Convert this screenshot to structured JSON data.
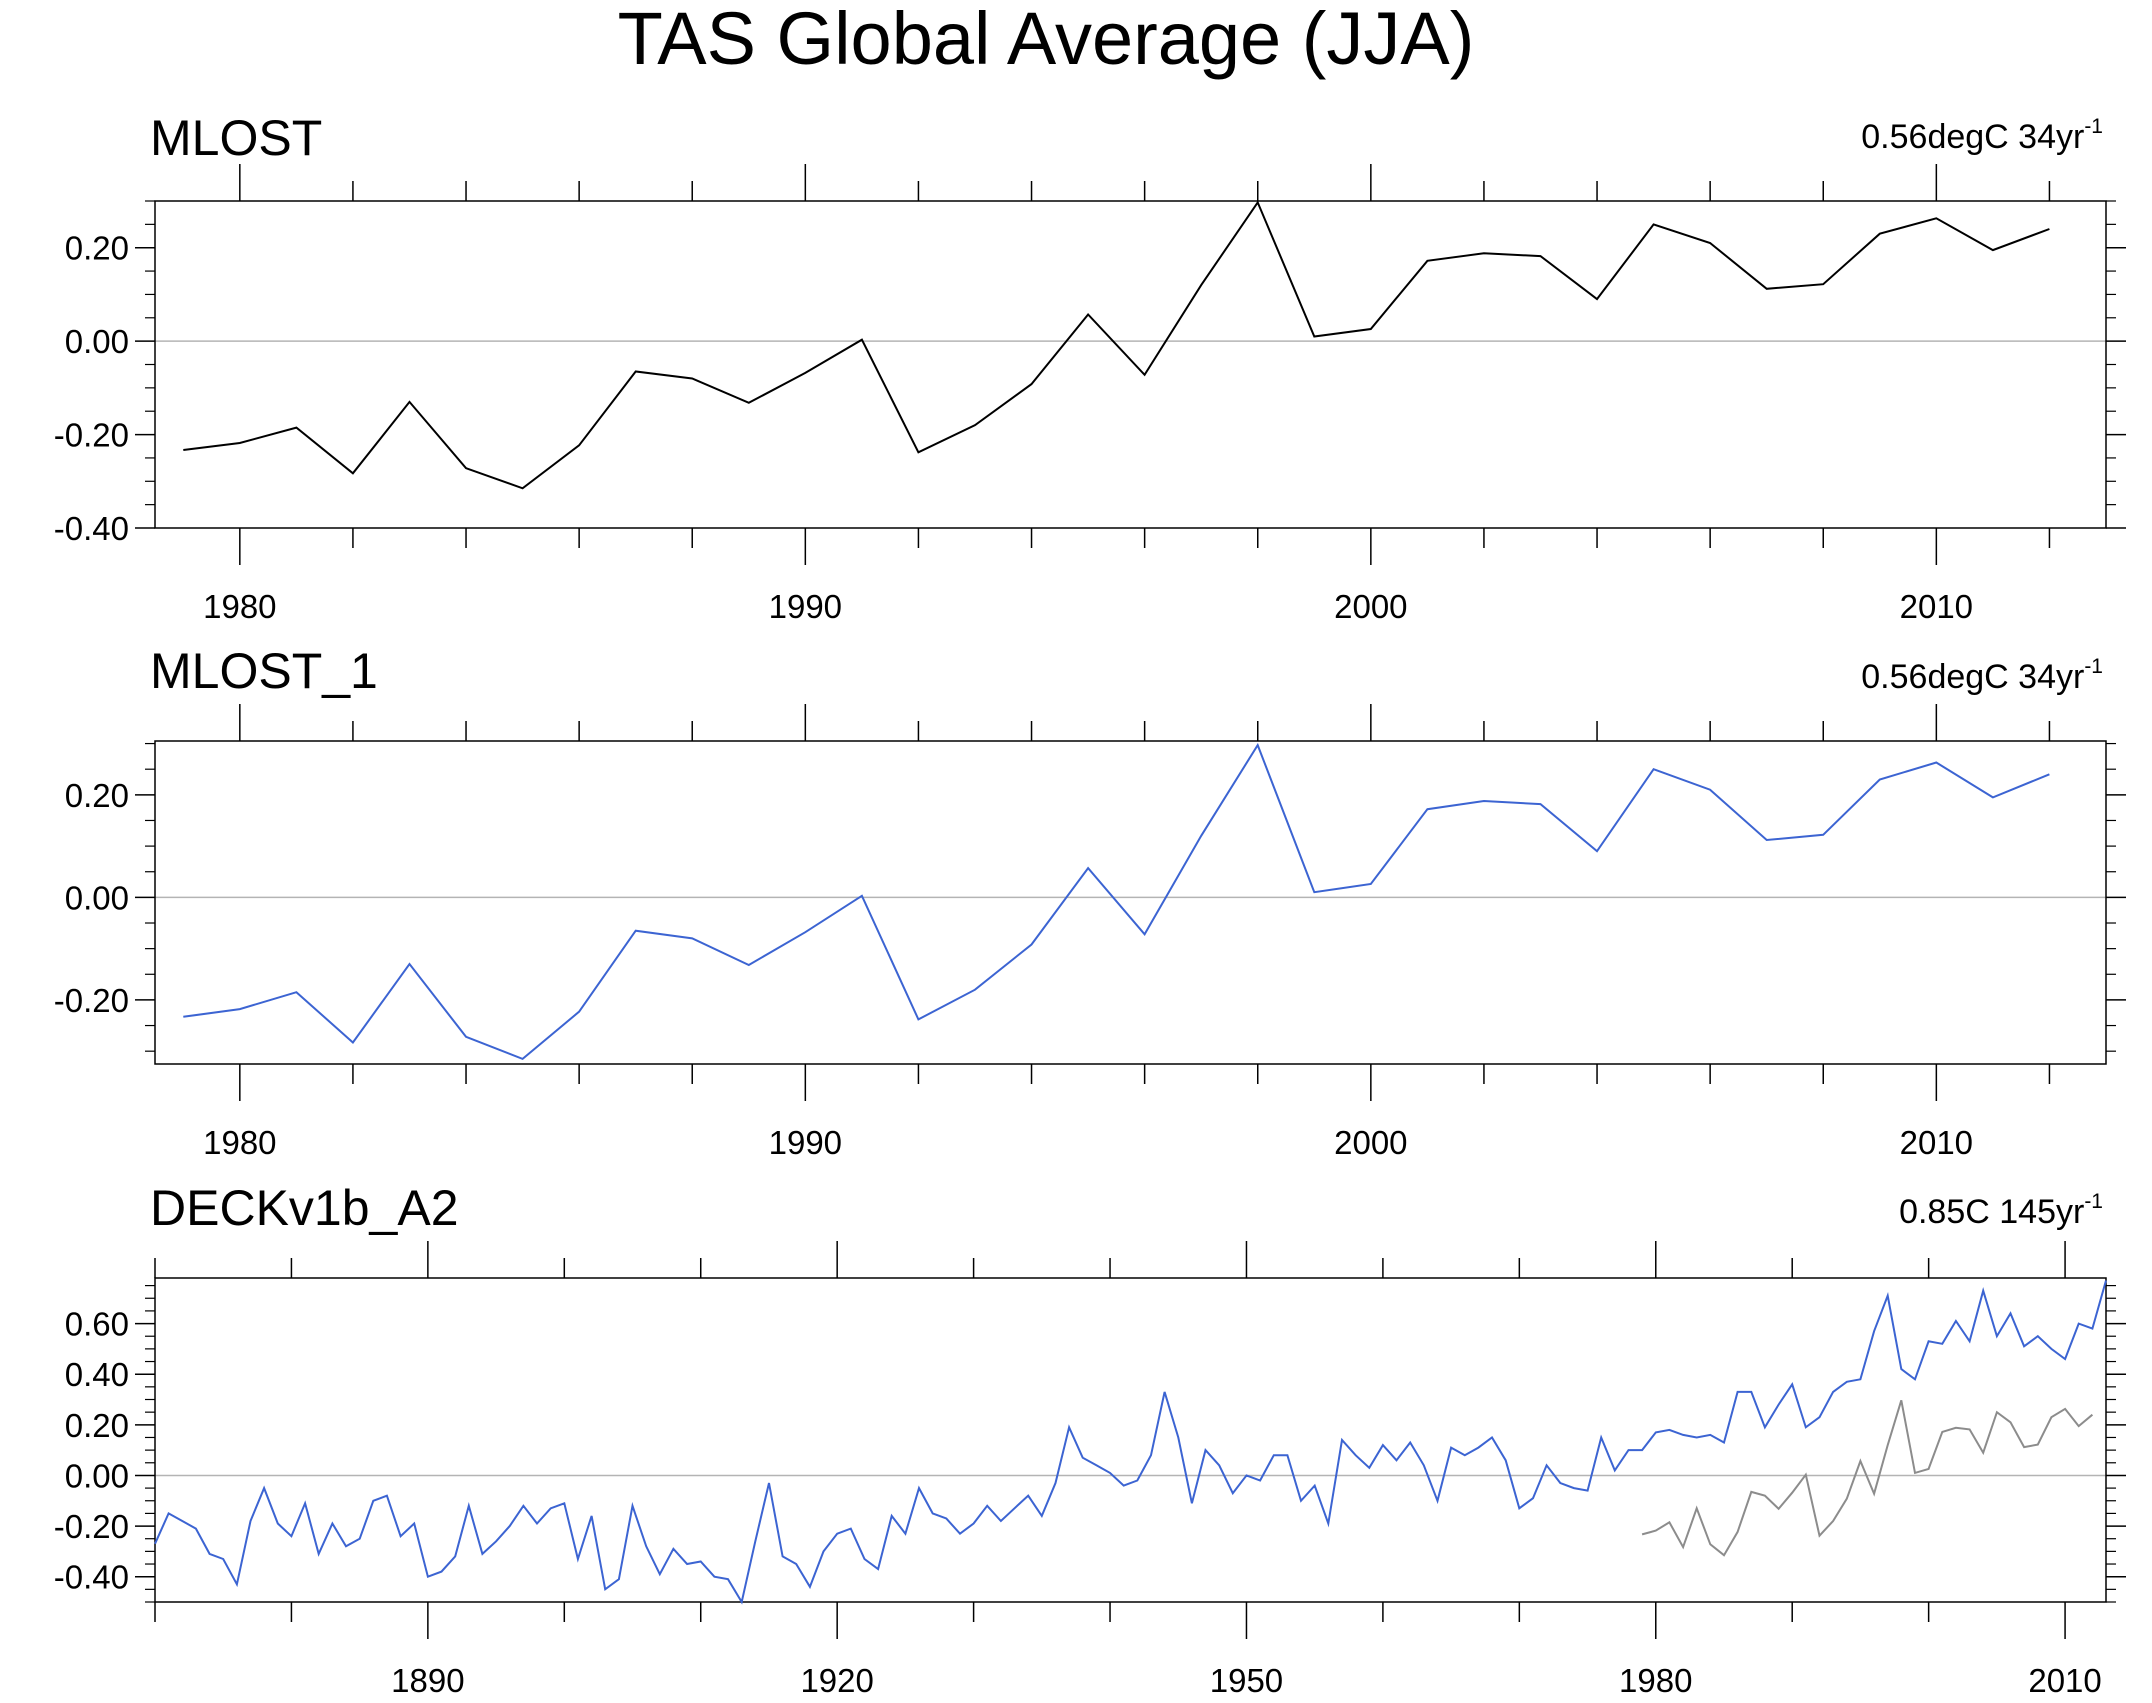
{
  "title": "TAS Global Average (JJA)",
  "colors": {
    "axis": "#000000",
    "zero_line": "#b4b4b4",
    "series_black": "#000000",
    "series_blue": "#3c64d2",
    "series_gray": "#8c8c8c"
  },
  "chart_data": [
    {
      "type": "line",
      "title": "MLOST",
      "trend": {
        "value": "0.56degC 34yr",
        "exponent": "-1"
      },
      "xlim": [
        1978.5,
        2013
      ],
      "ylim": [
        -0.4,
        0.3
      ],
      "x_major_ticks": [
        1980,
        1990,
        2000,
        2010
      ],
      "x_tick_labels": [
        "1980",
        "1990",
        "2000",
        "2010"
      ],
      "x_minor_step": 2,
      "y_major_ticks": [
        -0.4,
        -0.2,
        0.0,
        0.2
      ],
      "y_tick_labels": [
        "-0.40",
        "-0.20",
        "0.00",
        "0.20"
      ],
      "y_minor_step": 0.05,
      "zero_line": true,
      "series": [
        {
          "name": "MLOST",
          "color": "#000000",
          "x": [
            1979,
            1980,
            1981,
            1982,
            1983,
            1984,
            1985,
            1986,
            1987,
            1988,
            1989,
            1990,
            1991,
            1992,
            1993,
            1994,
            1995,
            1996,
            1997,
            1998,
            1999,
            2000,
            2001,
            2002,
            2003,
            2004,
            2005,
            2006,
            2007,
            2008,
            2009,
            2010,
            2011,
            2012
          ],
          "values": [
            -0.233,
            -0.218,
            -0.185,
            -0.283,
            -0.13,
            -0.272,
            -0.315,
            -0.223,
            -0.065,
            -0.08,
            -0.132,
            -0.068,
            0.003,
            -0.238,
            -0.18,
            -0.092,
            0.057,
            -0.072,
            0.12,
            0.297,
            0.01,
            0.026,
            0.172,
            0.188,
            0.182,
            0.09,
            0.25,
            0.21,
            0.112,
            0.122,
            0.23,
            0.263,
            0.195,
            0.24
          ]
        }
      ]
    },
    {
      "type": "line",
      "title": "MLOST_1",
      "trend": {
        "value": "0.56degC 34yr",
        "exponent": "-1"
      },
      "xlim": [
        1978.5,
        2013
      ],
      "ylim": [
        -0.325,
        0.305
      ],
      "x_major_ticks": [
        1980,
        1990,
        2000,
        2010
      ],
      "x_tick_labels": [
        "1980",
        "1990",
        "2000",
        "2010"
      ],
      "x_minor_step": 2,
      "y_major_ticks": [
        -0.2,
        0.0,
        0.2
      ],
      "y_tick_labels": [
        "-0.20",
        "0.00",
        "0.20"
      ],
      "y_minor_step": 0.05,
      "zero_line": true,
      "series": [
        {
          "name": "MLOST_1",
          "color": "#3c64d2",
          "x": [
            1979,
            1980,
            1981,
            1982,
            1983,
            1984,
            1985,
            1986,
            1987,
            1988,
            1989,
            1990,
            1991,
            1992,
            1993,
            1994,
            1995,
            1996,
            1997,
            1998,
            1999,
            2000,
            2001,
            2002,
            2003,
            2004,
            2005,
            2006,
            2007,
            2008,
            2009,
            2010,
            2011,
            2012
          ],
          "values": [
            -0.233,
            -0.218,
            -0.185,
            -0.283,
            -0.13,
            -0.272,
            -0.315,
            -0.223,
            -0.065,
            -0.08,
            -0.132,
            -0.068,
            0.003,
            -0.238,
            -0.18,
            -0.092,
            0.057,
            -0.072,
            0.12,
            0.297,
            0.01,
            0.026,
            0.172,
            0.188,
            0.182,
            0.09,
            0.25,
            0.21,
            0.112,
            0.122,
            0.23,
            0.263,
            0.195,
            0.24
          ]
        }
      ]
    },
    {
      "type": "line",
      "title": "DECKv1b_A2",
      "trend": {
        "value": "0.85C 145yr",
        "exponent": "-1"
      },
      "xlim": [
        1870,
        2013
      ],
      "ylim": [
        -0.5,
        0.78
      ],
      "x_major_ticks": [
        1890,
        1920,
        1950,
        1980,
        2010
      ],
      "x_tick_labels": [
        "1890",
        "1920",
        "1950",
        "1980",
        "2010"
      ],
      "x_minor_step": 10,
      "y_major_ticks": [
        -0.4,
        -0.2,
        0.0,
        0.2,
        0.4,
        0.6
      ],
      "y_tick_labels": [
        "-0.40",
        "-0.20",
        "0.00",
        "0.20",
        "0.40",
        "0.60"
      ],
      "y_minor_step": 0.05,
      "zero_line": true,
      "series": [
        {
          "name": "DECKv1b_A2",
          "color": "#3c64d2",
          "x_start": 1870,
          "x_step": 1,
          "values": [
            -0.27,
            -0.15,
            -0.18,
            -0.21,
            -0.31,
            -0.33,
            -0.43,
            -0.18,
            -0.05,
            -0.19,
            -0.24,
            -0.11,
            -0.31,
            -0.19,
            -0.28,
            -0.25,
            -0.1,
            -0.08,
            -0.24,
            -0.19,
            -0.4,
            -0.38,
            -0.32,
            -0.12,
            -0.31,
            -0.26,
            -0.2,
            -0.12,
            -0.19,
            -0.13,
            -0.11,
            -0.33,
            -0.16,
            -0.45,
            -0.41,
            -0.12,
            -0.28,
            -0.39,
            -0.29,
            -0.35,
            -0.34,
            -0.4,
            -0.41,
            -0.5,
            -0.26,
            -0.03,
            -0.32,
            -0.35,
            -0.44,
            -0.3,
            -0.23,
            -0.21,
            -0.33,
            -0.37,
            -0.16,
            -0.23,
            -0.05,
            -0.15,
            -0.17,
            -0.23,
            -0.19,
            -0.12,
            -0.18,
            -0.13,
            -0.08,
            -0.16,
            -0.03,
            0.19,
            0.07,
            0.04,
            0.01,
            -0.04,
            -0.02,
            0.08,
            0.33,
            0.15,
            -0.11,
            0.1,
            0.04,
            -0.07,
            0.0,
            -0.02,
            0.08,
            0.08,
            -0.1,
            -0.04,
            -0.19,
            0.14,
            0.08,
            0.03,
            0.12,
            0.06,
            0.13,
            0.04,
            -0.1,
            0.11,
            0.08,
            0.11,
            0.15,
            0.06,
            -0.13,
            -0.09,
            0.04,
            -0.03,
            -0.05,
            -0.06,
            0.15,
            0.02,
            0.1,
            0.1,
            0.17,
            0.18,
            0.16,
            0.15,
            0.16,
            0.13,
            0.33,
            0.33,
            0.19,
            0.28,
            0.36,
            0.19,
            0.23,
            0.33,
            0.37,
            0.38,
            0.57,
            0.71,
            0.42,
            0.38,
            0.53,
            0.52,
            0.61,
            0.53,
            0.73,
            0.55,
            0.64,
            0.51,
            0.55,
            0.5,
            0.46,
            0.6,
            0.58,
            0.77
          ]
        },
        {
          "name": "MLOST",
          "color": "#8c8c8c",
          "x": [
            1979,
            1980,
            1981,
            1982,
            1983,
            1984,
            1985,
            1986,
            1987,
            1988,
            1989,
            1990,
            1991,
            1992,
            1993,
            1994,
            1995,
            1996,
            1997,
            1998,
            1999,
            2000,
            2001,
            2002,
            2003,
            2004,
            2005,
            2006,
            2007,
            2008,
            2009,
            2010,
            2011,
            2012
          ],
          "values": [
            -0.233,
            -0.218,
            -0.185,
            -0.283,
            -0.13,
            -0.272,
            -0.315,
            -0.223,
            -0.065,
            -0.08,
            -0.132,
            -0.068,
            0.003,
            -0.238,
            -0.18,
            -0.092,
            0.057,
            -0.072,
            0.12,
            0.297,
            0.01,
            0.026,
            0.172,
            0.188,
            0.182,
            0.09,
            0.25,
            0.21,
            0.112,
            0.122,
            0.23,
            0.263,
            0.195,
            0.24
          ]
        }
      ]
    }
  ]
}
